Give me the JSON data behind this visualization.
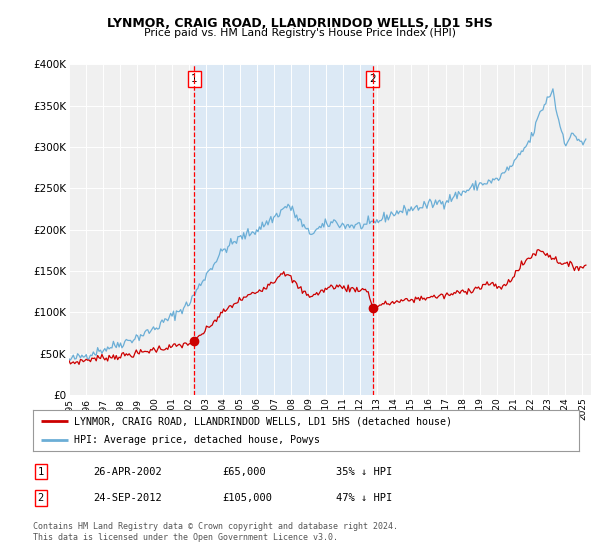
{
  "title": "LYNMOR, CRAIG ROAD, LLANDRINDOD WELLS, LD1 5HS",
  "subtitle": "Price paid vs. HM Land Registry's House Price Index (HPI)",
  "hpi_color": "#6baed6",
  "price_color": "#cc0000",
  "shaded_color": "#dce9f5",
  "plot_bg": "#f0f0f0",
  "ylim": [
    0,
    400000
  ],
  "yticks": [
    0,
    50000,
    100000,
    150000,
    200000,
    250000,
    300000,
    350000,
    400000
  ],
  "ytick_labels": [
    "£0",
    "£50K",
    "£100K",
    "£150K",
    "£200K",
    "£250K",
    "£300K",
    "£350K",
    "£400K"
  ],
  "xlim_start": 1995.0,
  "xlim_end": 2025.5,
  "sale1_x": 2002.32,
  "sale1_y": 65000,
  "sale1_label": "1",
  "sale1_date": "26-APR-2002",
  "sale1_price": "£65,000",
  "sale1_hpi": "35% ↓ HPI",
  "sale2_x": 2012.74,
  "sale2_y": 105000,
  "sale2_label": "2",
  "sale2_date": "24-SEP-2012",
  "sale2_price": "£105,000",
  "sale2_hpi": "47% ↓ HPI",
  "legend_line1": "LYNMOR, CRAIG ROAD, LLANDRINDOD WELLS, LD1 5HS (detached house)",
  "legend_line2": "HPI: Average price, detached house, Powys",
  "footer1": "Contains HM Land Registry data © Crown copyright and database right 2024.",
  "footer2": "This data is licensed under the Open Government Licence v3.0.",
  "shaded_start": 2002.32,
  "shaded_end": 2012.74
}
